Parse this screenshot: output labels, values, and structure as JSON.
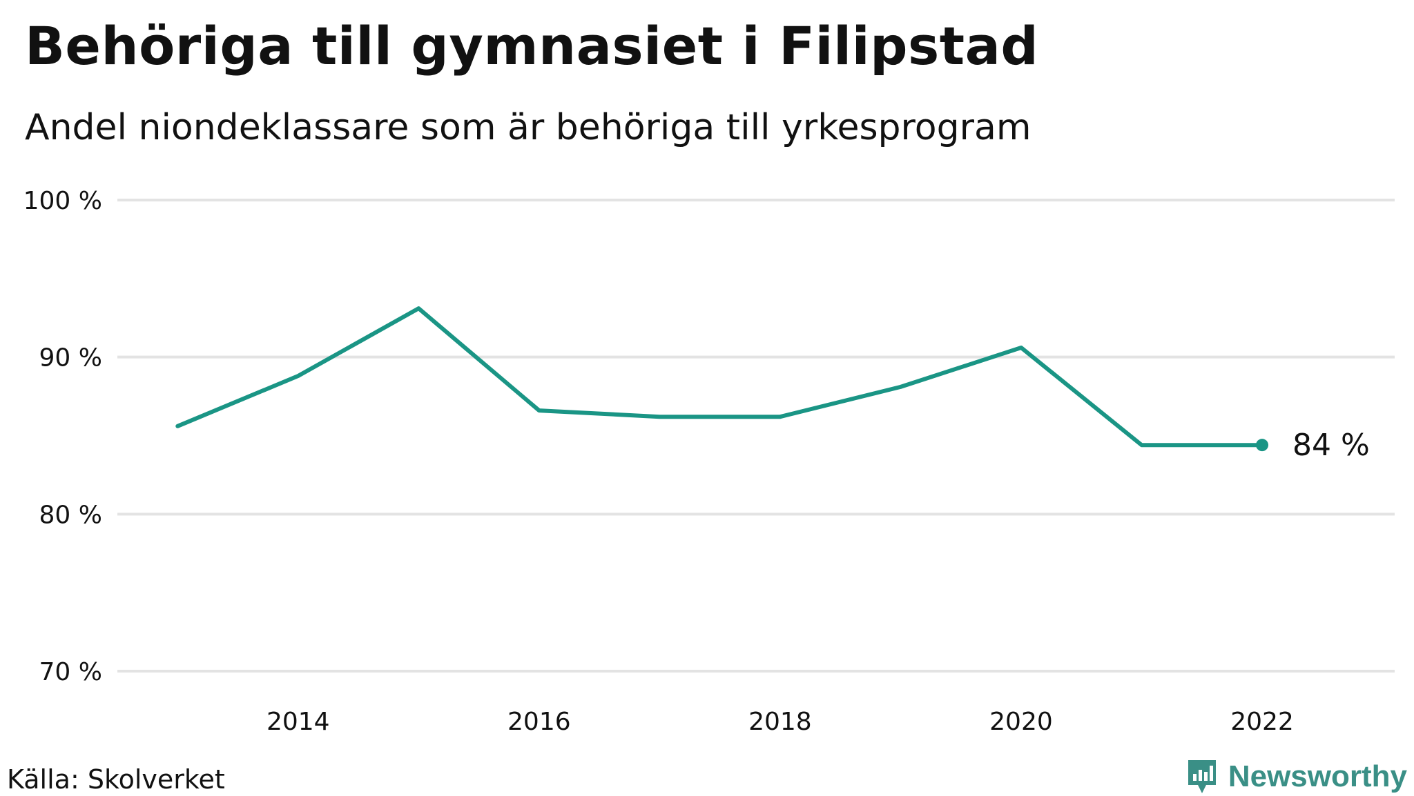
{
  "title": "Behöriga till gymnasiet i Filipstad",
  "subtitle": "Andel niondeklassare som är behöriga till yrkesprogram",
  "source": "Källa: Skolverket",
  "logo_text": "Newsworthy",
  "colors": {
    "line": "#1a9585",
    "grid": "#e3e3e3",
    "logo": "#3a8f86"
  },
  "chart_data": {
    "type": "line",
    "x": [
      2013,
      2014,
      2015,
      2016,
      2017,
      2018,
      2019,
      2020,
      2021,
      2022
    ],
    "series": [
      {
        "values": [
          85.6,
          88.8,
          93.1,
          86.6,
          86.2,
          86.2,
          88.1,
          90.6,
          84.4,
          84.4
        ]
      }
    ],
    "x_ticks": [
      2014,
      2016,
      2018,
      2020,
      2022
    ],
    "x_tick_labels": [
      "2014",
      "2016",
      "2018",
      "2020",
      "2022"
    ],
    "y_ticks": [
      70,
      80,
      90,
      100
    ],
    "y_tick_labels": [
      "70 %",
      "80 %",
      "90 %",
      "100 %"
    ],
    "xlim": [
      2012.5,
      2023.1
    ],
    "ylim": [
      70,
      100
    ],
    "grid": true,
    "end_label": "84  %"
  }
}
